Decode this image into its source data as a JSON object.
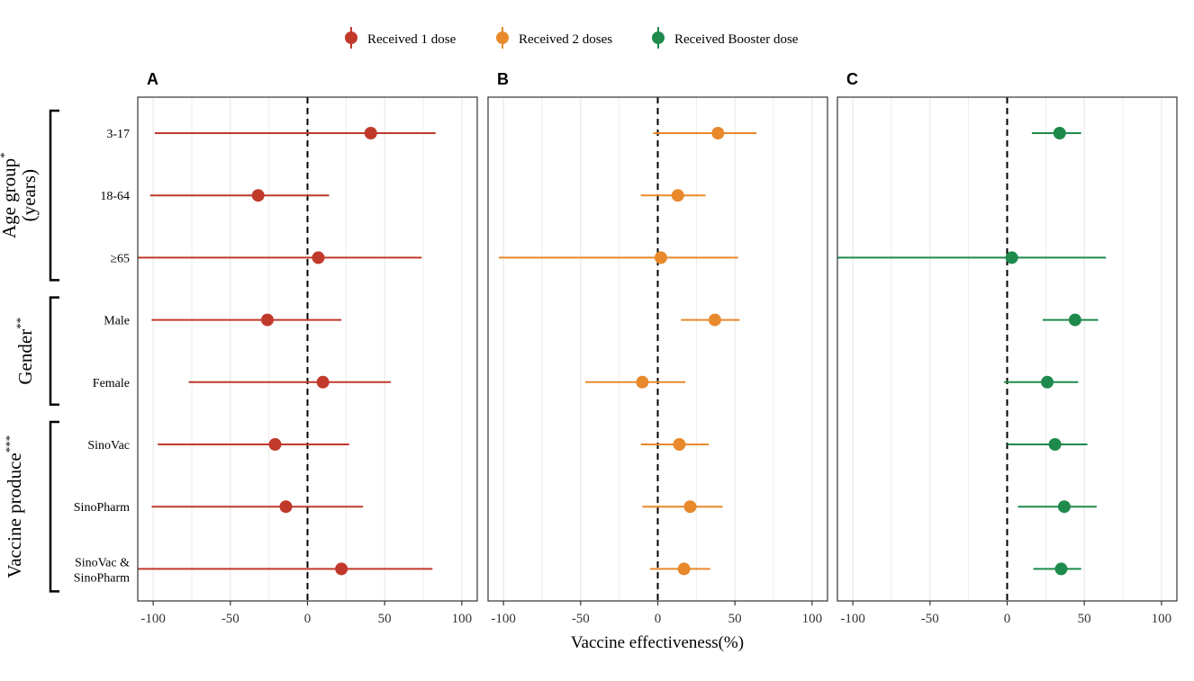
{
  "chart_data": {
    "type": "forest",
    "legend": {
      "placement": "top-center",
      "entries": [
        {
          "label": "Received 1 dose",
          "color": "#c0392b"
        },
        {
          "label": "Received 2 doses",
          "color": "#e8892b"
        },
        {
          "label": "Received Booster dose",
          "color": "#1e8a4c"
        }
      ]
    },
    "xlabel": "Vaccine effectiveness(%)",
    "xlim": [
      -110,
      110
    ],
    "xticks": [
      -100,
      -50,
      0,
      50,
      100
    ],
    "xtick_labels": [
      "-100",
      "-50",
      "0",
      "50",
      "100"
    ],
    "reference_line": 0,
    "categories": [
      "3-17",
      "18-64",
      "≥65",
      "Male",
      "Female",
      "SinoVac",
      "SinoPharm",
      "SinoVac & SinoPharm"
    ],
    "category_labels": [
      [
        "3-17"
      ],
      [
        "18-64"
      ],
      [
        "≥65"
      ],
      [
        "Male"
      ],
      [
        "Female"
      ],
      [
        "SinoVac"
      ],
      [
        "SinoPharm"
      ],
      [
        "SinoVac &",
        "SinoPharm"
      ]
    ],
    "groups": [
      {
        "label": "Age group",
        "sup": "*",
        "label2": "(years)",
        "rows": [
          0,
          2
        ]
      },
      {
        "label": "Gender",
        "sup": "**",
        "rows": [
          3,
          4
        ]
      },
      {
        "label": "Vaccine produce",
        "sup": "***",
        "rows": [
          5,
          7
        ]
      }
    ],
    "panels": [
      {
        "letter": "A",
        "series": "Received 1 dose",
        "color": "#c0392b",
        "estimates": [
          41,
          -32,
          7,
          -26,
          10,
          -21,
          -14,
          22
        ],
        "lower": [
          -99,
          -102,
          -115,
          -101,
          -77,
          -97,
          -101,
          -115
        ],
        "upper": [
          83,
          14,
          74,
          22,
          54,
          27,
          36,
          81
        ]
      },
      {
        "letter": "B",
        "series": "Received 2 doses",
        "color": "#e8892b",
        "estimates": [
          39,
          13,
          2,
          37,
          -10,
          14,
          21,
          17
        ],
        "lower": [
          -3,
          -11,
          -103,
          15,
          -47,
          -11,
          -10,
          -5
        ],
        "upper": [
          64,
          31,
          52,
          53,
          18,
          33,
          42,
          34
        ]
      },
      {
        "letter": "C",
        "series": "Received Booster dose",
        "color": "#1e8a4c",
        "estimates": [
          34,
          null,
          3,
          44,
          26,
          31,
          37,
          35
        ],
        "lower": [
          16,
          null,
          -115,
          23,
          -2,
          0,
          7,
          17
        ],
        "upper": [
          48,
          null,
          64,
          59,
          46,
          52,
          58,
          48
        ]
      }
    ]
  }
}
